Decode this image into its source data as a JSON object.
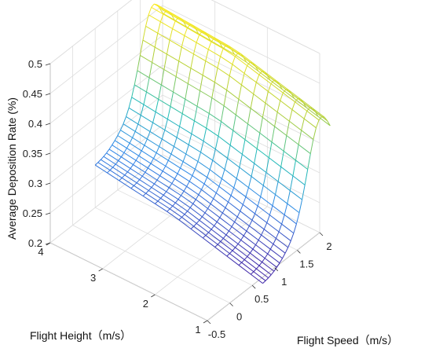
{
  "chart_data": {
    "type": "surface-mesh-3d",
    "xlabel": "Flight Speed（m/s）",
    "ylabel": "Flight Height（m/s）",
    "zlabel": "Average Deposition Rate (%)",
    "xlim": [
      -0.5,
      2
    ],
    "ylim": [
      1,
      4
    ],
    "zlim": [
      0.2,
      0.5
    ],
    "xticks": [
      "-0.5",
      "0",
      "0.5",
      "1",
      "1.5",
      "2"
    ],
    "yticks": [
      "1",
      "2",
      "3",
      "4"
    ],
    "zticks": [
      "0.2",
      "0.25",
      "0.3",
      "0.35",
      "0.4",
      "0.45",
      "0.5"
    ],
    "grid": true,
    "colormap": "parula",
    "surface": {
      "x_range": [
        0.5,
        2
      ],
      "y_range": [
        0.8,
        4
      ],
      "description_values": [
        {
          "x": 2.0,
          "y": 4.0,
          "z": 0.44
        },
        {
          "x": 2.0,
          "y": 2.5,
          "z": 0.43
        },
        {
          "x": 2.0,
          "y": 1.2,
          "z": 0.4
        },
        {
          "x": 0.5,
          "y": 4.0,
          "z": 0.27
        },
        {
          "x": 0.5,
          "y": 2.5,
          "z": 0.25
        },
        {
          "x": 0.5,
          "y": 1.2,
          "z": 0.22
        }
      ]
    }
  }
}
